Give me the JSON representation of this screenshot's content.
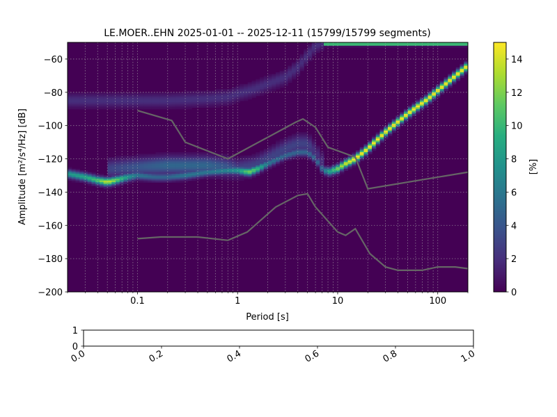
{
  "chart_data": [
    {
      "type": "heatmap",
      "title": "LE.MOER..EHN   2025-01-01 -- 2025-12-11  (15799/15799 segments)",
      "xlabel": "Period [s]",
      "ylabel": "Amplitude [m²/s⁴/Hz] [dB]",
      "xscale": "log",
      "xlim": [
        0.02,
        200
      ],
      "ylim": [
        -200,
        -50
      ],
      "xticks": [
        {
          "v": 0.1,
          "label": "0.1"
        },
        {
          "v": 1,
          "label": "1"
        },
        {
          "v": 10,
          "label": "10"
        },
        {
          "v": 100,
          "label": "100"
        }
      ],
      "yticks": [
        {
          "v": -200,
          "label": "−200"
        },
        {
          "v": -180,
          "label": "−180"
        },
        {
          "v": -160,
          "label": "−160"
        },
        {
          "v": -140,
          "label": "−140"
        },
        {
          "v": -120,
          "label": "−120"
        },
        {
          "v": -100,
          "label": "−100"
        },
        {
          "v": -80,
          "label": "−80"
        },
        {
          "v": -60,
          "label": "−60"
        }
      ],
      "grid": true,
      "colormap": "viridis",
      "colorbar": {
        "label": "[%]",
        "range": [
          0,
          15
        ],
        "ticks": [
          {
            "v": 0,
            "label": "0"
          },
          {
            "v": 2,
            "label": "2"
          },
          {
            "v": 4,
            "label": "4"
          },
          {
            "v": 6,
            "label": "6"
          },
          {
            "v": 8,
            "label": "8"
          },
          {
            "v": 10,
            "label": "10"
          },
          {
            "v": 12,
            "label": "12"
          },
          {
            "v": 14,
            "label": "14"
          }
        ]
      },
      "density_tracks": [
        {
          "desc": "primary mode",
          "points": [
            [
              0.02,
              -129
            ],
            [
              0.03,
              -131
            ],
            [
              0.04,
              -133
            ],
            [
              0.05,
              -134
            ],
            [
              0.06,
              -133
            ],
            [
              0.08,
              -131
            ],
            [
              0.1,
              -130
            ],
            [
              0.15,
              -131
            ],
            [
              0.2,
              -131
            ],
            [
              0.3,
              -130
            ],
            [
              0.5,
              -128
            ],
            [
              0.8,
              -127
            ],
            [
              1.0,
              -127
            ],
            [
              1.3,
              -128
            ],
            [
              1.6,
              -126
            ],
            [
              2.0,
              -123
            ],
            [
              3.0,
              -118
            ],
            [
              4.0,
              -116
            ],
            [
              5.0,
              -116
            ],
            [
              6.0,
              -120
            ],
            [
              7.0,
              -126
            ],
            [
              8.0,
              -128
            ],
            [
              10,
              -126
            ],
            [
              12,
              -123
            ],
            [
              15,
              -120
            ],
            [
              20,
              -114
            ],
            [
              30,
              -104
            ],
            [
              50,
              -93
            ],
            [
              80,
              -84
            ],
            [
              120,
              -75
            ],
            [
              200,
              -64
            ]
          ],
          "peak_percent": [
            8,
            9,
            11,
            14,
            12,
            8,
            6,
            5,
            5,
            6,
            6,
            7,
            8,
            12,
            10,
            6,
            5,
            5,
            5,
            5,
            5,
            8,
            12,
            14,
            15,
            15,
            15,
            15,
            15,
            15,
            15
          ]
        },
        {
          "desc": "secondary mode",
          "points": [
            [
              0.05,
              -126
            ],
            [
              0.1,
              -125
            ],
            [
              0.2,
              -124
            ],
            [
              0.3,
              -124
            ],
            [
              0.5,
              -124
            ],
            [
              0.8,
              -125
            ],
            [
              1.0,
              -126
            ],
            [
              1.5,
              -124
            ],
            [
              2,
              -120
            ],
            [
              3,
              -114
            ],
            [
              4,
              -111
            ],
            [
              5,
              -111
            ],
            [
              6,
              -116
            ],
            [
              7,
              -122
            ]
          ],
          "peak_percent": [
            3,
            4,
            5,
            5,
            5,
            4,
            3,
            3,
            3,
            3,
            3,
            3,
            2,
            2
          ]
        },
        {
          "desc": "upper mode",
          "points": [
            [
              0.02,
              -85
            ],
            [
              0.05,
              -85
            ],
            [
              0.1,
              -85
            ],
            [
              0.2,
              -85
            ],
            [
              0.5,
              -84
            ],
            [
              0.8,
              -83
            ],
            [
              1.0,
              -81
            ],
            [
              1.5,
              -78
            ],
            [
              2.0,
              -75
            ],
            [
              3.0,
              -71
            ],
            [
              4.0,
              -65
            ],
            [
              5.0,
              -58
            ],
            [
              6.0,
              -52
            ],
            [
              7.0,
              -50
            ]
          ],
          "peak_percent": [
            2,
            2,
            2,
            2,
            2,
            2,
            2,
            2,
            2,
            2,
            2,
            2,
            2,
            2
          ]
        },
        {
          "desc": "top clip band",
          "points": [
            [
              7,
              -51
            ],
            [
              200,
              -51
            ]
          ],
          "peak_percent": [
            15,
            15
          ]
        }
      ],
      "series": [
        {
          "values": [
            [
              0.1,
              -91
            ],
            [
              0.22,
              -97
            ],
            [
              0.3,
              -110
            ],
            [
              0.8,
              -120
            ],
            [
              3.8,
              -98
            ],
            [
              4.5,
              -96
            ],
            [
              6,
              -101
            ],
            [
              8,
              -113
            ],
            [
              15,
              -119
            ],
            [
              20,
              -138
            ],
            [
              200,
              -128
            ]
          ]
        },
        {
          "values": [
            [
              0.1,
              -168
            ],
            [
              0.17,
              -167
            ],
            [
              0.4,
              -167
            ],
            [
              0.8,
              -169
            ],
            [
              1.25,
              -164
            ],
            [
              2.4,
              -149
            ],
            [
              4,
              -142
            ],
            [
              5,
              -141
            ],
            [
              6,
              -149
            ],
            [
              10,
              -164
            ],
            [
              12,
              -166
            ],
            [
              15,
              -162
            ],
            [
              21,
              -177
            ],
            [
              30,
              -185
            ],
            [
              40,
              -187
            ],
            [
              70,
              -187
            ],
            [
              100,
              -185
            ],
            [
              150,
              -185
            ],
            [
              200,
              -186
            ]
          ]
        }
      ]
    },
    {
      "type": "line",
      "xlim": [
        0.0,
        1.0
      ],
      "ylim": [
        0,
        1
      ],
      "xticks": [
        {
          "v": 0.0,
          "label": "0.0"
        },
        {
          "v": 0.2,
          "label": "0.2"
        },
        {
          "v": 0.4,
          "label": "0.4"
        },
        {
          "v": 0.6,
          "label": "0.6"
        },
        {
          "v": 0.8,
          "label": "0.8"
        },
        {
          "v": 1.0,
          "label": "1.0"
        }
      ],
      "yticks": [
        {
          "v": 0,
          "label": "0"
        },
        {
          "v": 1,
          "label": "1"
        }
      ],
      "series": []
    }
  ]
}
